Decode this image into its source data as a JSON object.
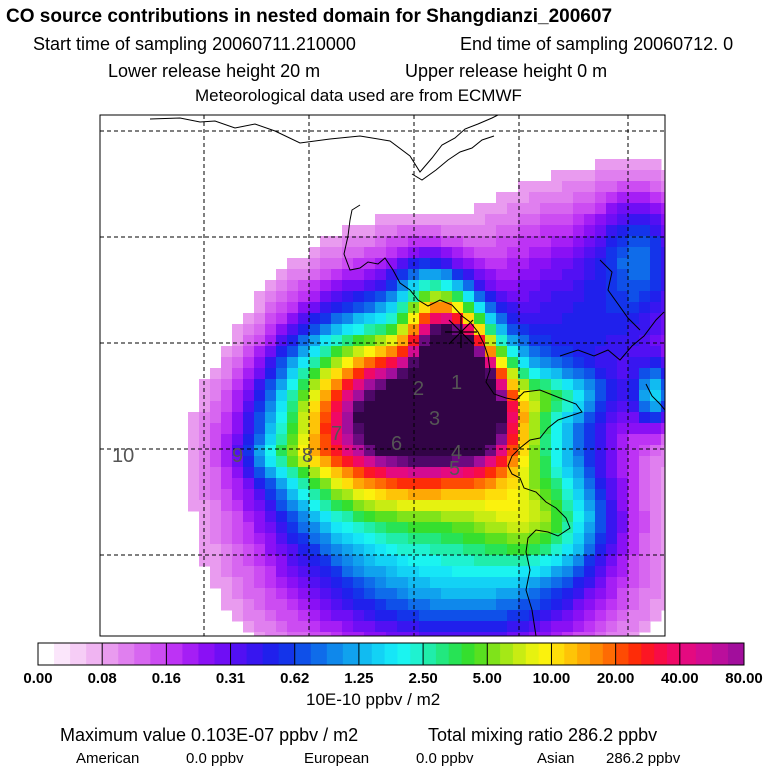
{
  "header": {
    "title": "CO  source contributions in nested domain for Shangdianzi_200607",
    "start_sampling": "Start time of sampling 20060711.210000",
    "end_sampling": "End time of sampling 20060712.     0",
    "lower_release": "Lower release height   20 m",
    "upper_release": "Upper release height    0 m",
    "met_data": "Meteorological data used are from ECMWF"
  },
  "chart_data": {
    "type": "heatmap",
    "title": "CO  source contributions in nested domain for Shangdianzi_200607",
    "colorbar": {
      "unit": "10E-10 ppbv / m2",
      "tick_labels": [
        "0.00",
        "0.08",
        "0.16",
        "0.31",
        "0.62",
        "1.25",
        "2.50",
        "5.00",
        "10.00",
        "20.00",
        "40.00",
        "80.00"
      ],
      "colors": [
        "#ffffff",
        "#fbe6fb",
        "#f6cdf6",
        "#f0b4f2",
        "#e99bef",
        "#e07fef",
        "#d766f0",
        "#cc4cf2",
        "#bd33f5",
        "#a51ef5",
        "#8a10f5",
        "#6f0ef5",
        "#5210f3",
        "#3816f0",
        "#2020ec",
        "#1434ea",
        "#0f50e9",
        "#0f6cea",
        "#0f88eb",
        "#10a2ee",
        "#11bbf1",
        "#13d2f5",
        "#16e6f7",
        "#1bf4f0",
        "#1ff2d0",
        "#20edaa",
        "#22e87f",
        "#27e355",
        "#35df2e",
        "#58e020",
        "#7fe31a",
        "#a5e816",
        "#c8ec13",
        "#e6f210",
        "#fbf20d",
        "#fedd0a",
        "#fec407",
        "#fea805",
        "#fe8a04",
        "#fe6b03",
        "#fe4b03",
        "#fe2c08",
        "#fc1624",
        "#f80c46",
        "#f00866",
        "#e40a80",
        "#d20c92",
        "#bb0e9c",
        "#a20e9c",
        "#880c92",
        "#6c0a80",
        "#4e0868",
        "#320446"
      ],
      "bands_per_tick": [
        4,
        4,
        4,
        4,
        4,
        5,
        5,
        5,
        5,
        5,
        4
      ]
    },
    "source_markers": [
      "10",
      "9",
      "8",
      "7",
      "6",
      "5",
      "4",
      "3",
      "2",
      "1"
    ],
    "max_value": "Maximum value  0.103E-07 ppbv / m2",
    "total": "Total mixing ratio      286.2 ppbv",
    "regions": [
      {
        "name": "American",
        "value": "0.0 ppbv"
      },
      {
        "name": "European",
        "value": "0.0 ppbv"
      },
      {
        "name": "Asian",
        "value": "286.2 ppbv"
      }
    ]
  },
  "colors": {
    "background": "#ffffff",
    "frame": "#000000",
    "coast": "#000000"
  }
}
